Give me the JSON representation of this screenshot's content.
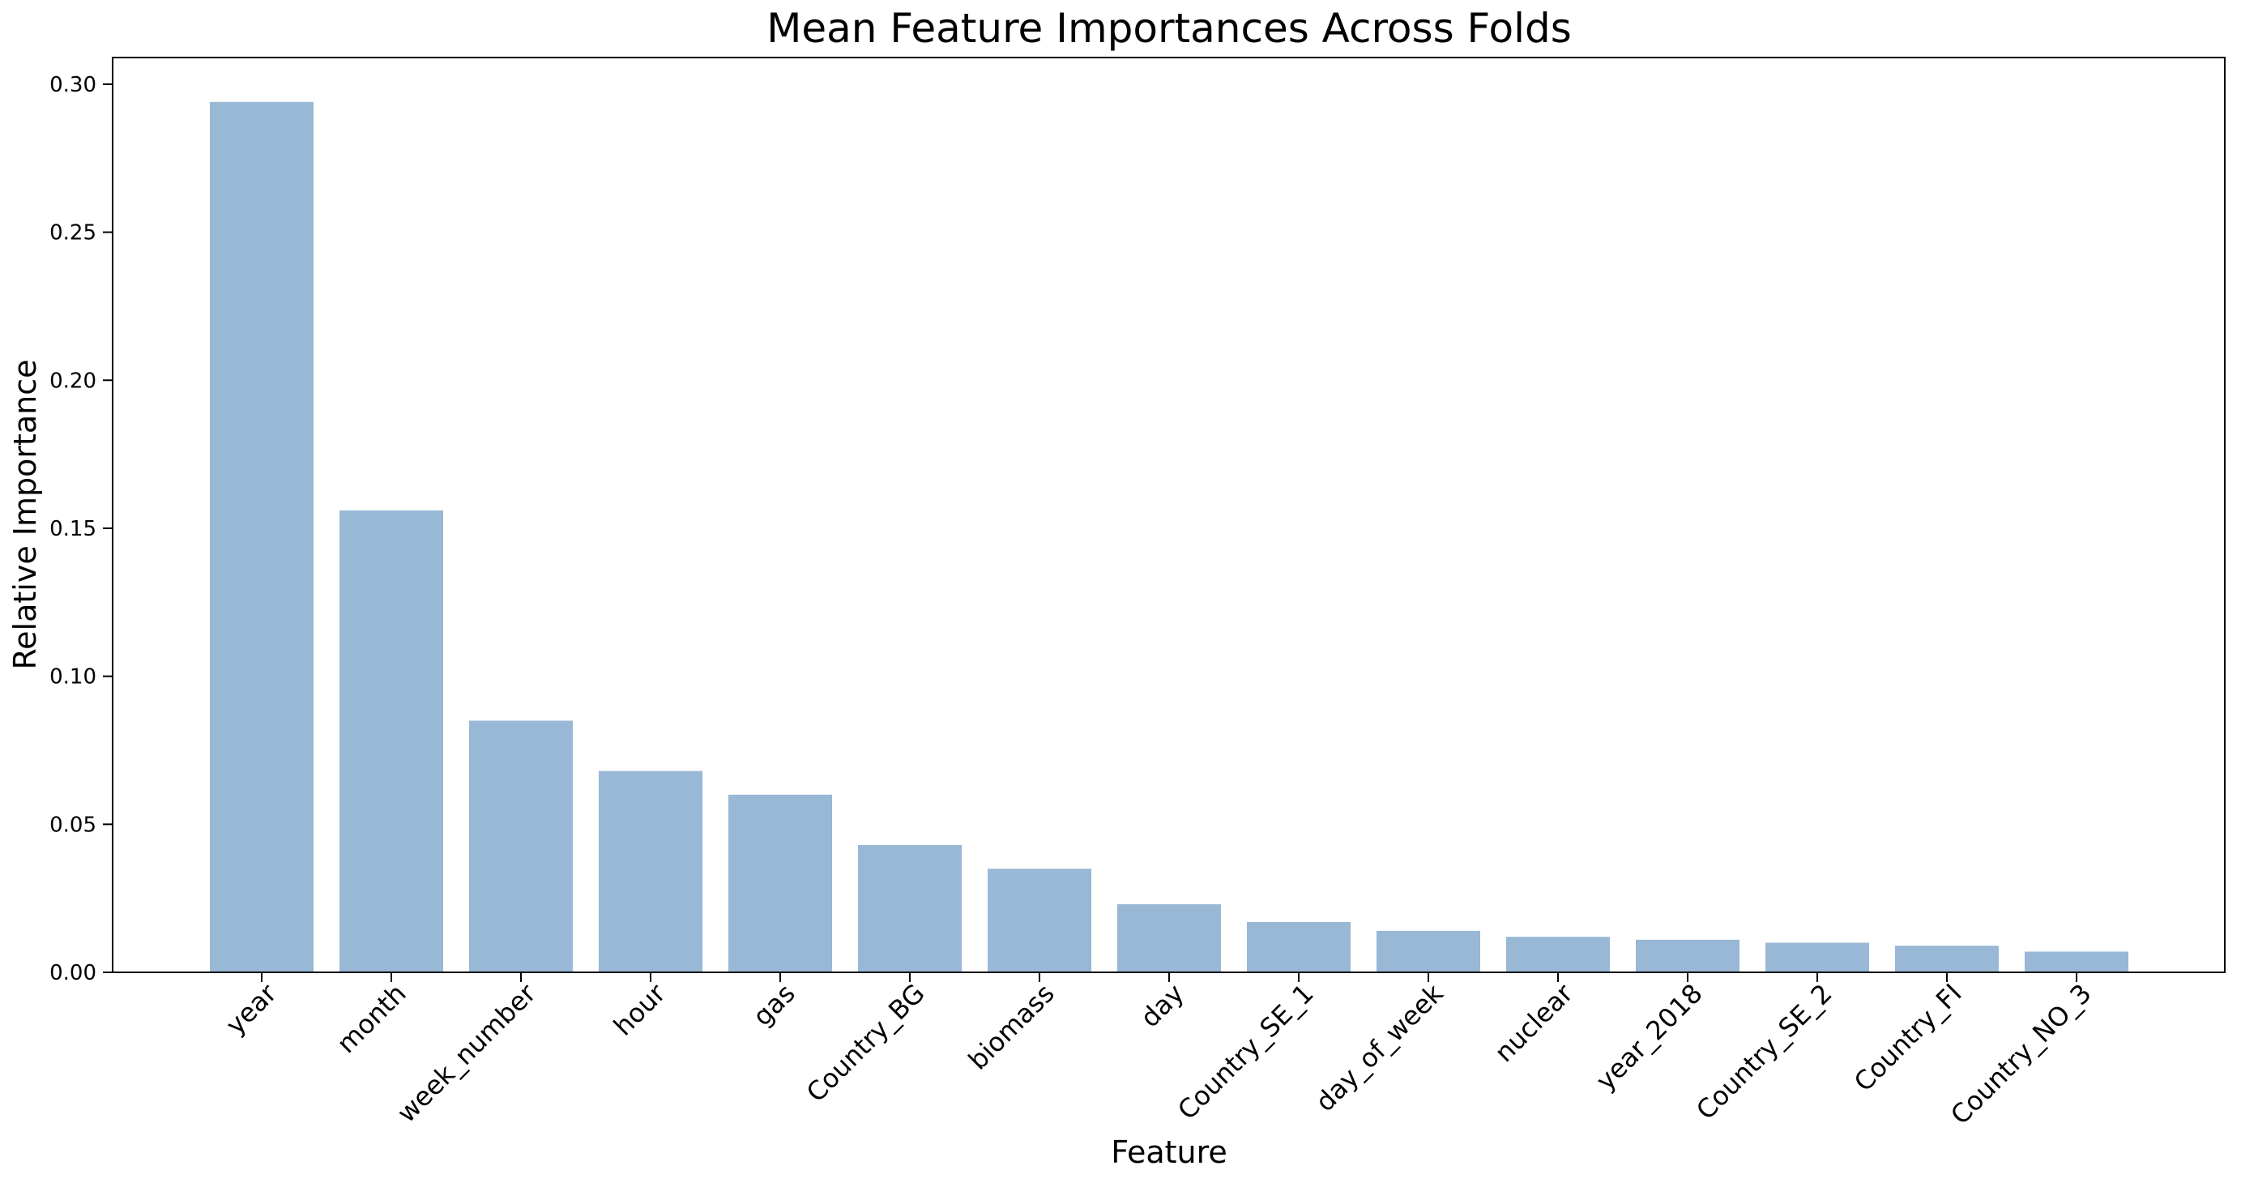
{
  "chart_data": {
    "type": "bar",
    "title": "Mean Feature Importances Across Folds",
    "xlabel": "Feature",
    "ylabel": "Relative Importance",
    "categories": [
      "year",
      "month",
      "week_number",
      "hour",
      "gas",
      "Country_BG",
      "biomass",
      "day",
      "Country_SE_1",
      "day_of_week",
      "nuclear",
      "year_2018",
      "Country_SE_2",
      "Country_FI",
      "Country_NO_3"
    ],
    "values": [
      0.294,
      0.156,
      0.085,
      0.068,
      0.06,
      0.043,
      0.035,
      0.023,
      0.017,
      0.014,
      0.012,
      0.011,
      0.01,
      0.009,
      0.007
    ],
    "ylim": [
      0,
      0.309
    ],
    "yticks": [
      0.0,
      0.05,
      0.1,
      0.15,
      0.2,
      0.25,
      0.3
    ],
    "ytick_labels": [
      "0.00",
      "0.05",
      "0.10",
      "0.15",
      "0.20",
      "0.25",
      "0.30"
    ],
    "grid": false,
    "bar_color": "#98b8d6",
    "bar_alpha": 1.0
  }
}
